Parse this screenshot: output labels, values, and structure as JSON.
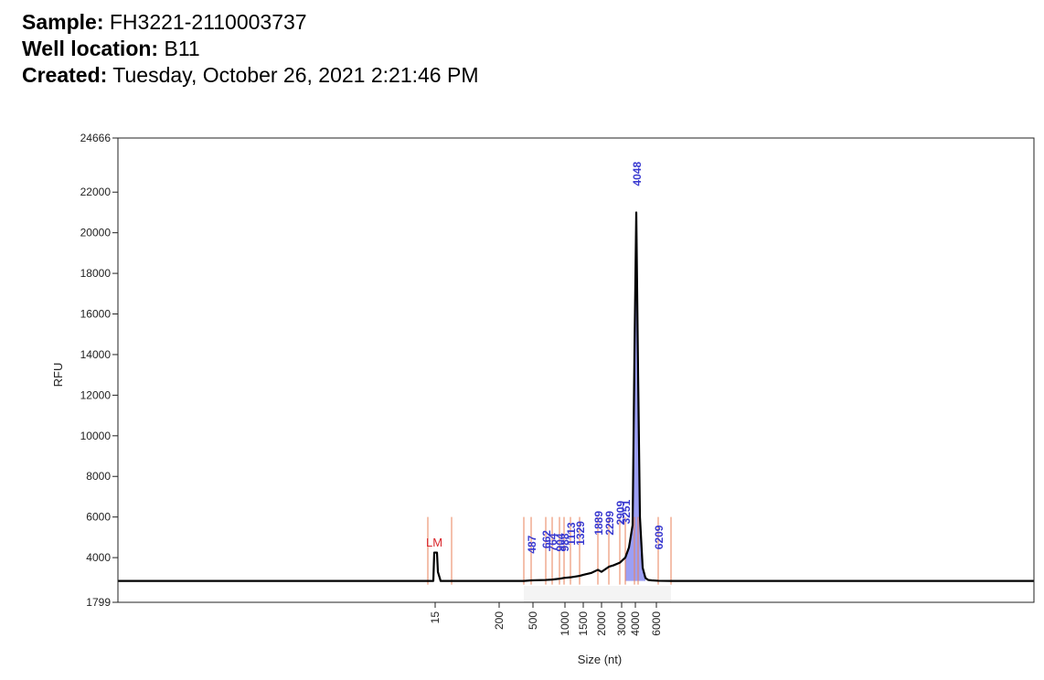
{
  "header": {
    "sample_label": "Sample:",
    "sample_value": "FH3221-2110003737",
    "well_label": "Well location:",
    "well_value": "B11",
    "created_label": "Created:",
    "created_value": "Tuesday, October 26, 2021 2:21:46 PM"
  },
  "chart_data": {
    "type": "line",
    "title": "",
    "xlabel": "Size (nt)",
    "ylabel": "RFU",
    "ylim": [
      1799,
      24666
    ],
    "y_ticks": [
      {
        "value": 1799,
        "label": "1799"
      },
      {
        "value": 4000,
        "label": "4000"
      },
      {
        "value": 6000,
        "label": "6000"
      },
      {
        "value": 8000,
        "label": "8000"
      },
      {
        "value": 10000,
        "label": "10000"
      },
      {
        "value": 12000,
        "label": "12000"
      },
      {
        "value": 14000,
        "label": "14000"
      },
      {
        "value": 16000,
        "label": "16000"
      },
      {
        "value": 18000,
        "label": "18000"
      },
      {
        "value": 20000,
        "label": "20000"
      },
      {
        "value": 22000,
        "label": "22000"
      },
      {
        "value": 24666,
        "label": "24666"
      }
    ],
    "x_ticks": [
      "15",
      "200",
      "500",
      "1000",
      "1500",
      "2000",
      "3000",
      "4000",
      "6000"
    ],
    "grid": false,
    "baseline_rfu": 2850,
    "marker": {
      "label": "LM",
      "size": 15,
      "peak_rfu": 4250,
      "color": "#d9262b"
    },
    "peak_labels": [
      "487",
      "662",
      "764",
      "904",
      "988",
      "1113",
      "1329",
      "1889",
      "2299",
      "2909",
      "3251",
      "4048",
      "6209"
    ],
    "main_peak": {
      "size": 4048,
      "rfu": 21000
    },
    "series": [
      {
        "x": [
          15,
          15,
          15,
          15,
          15,
          15,
          200,
          400,
          487,
          662,
          764,
          904,
          988,
          1113,
          1329,
          1500,
          1700,
          1889,
          2000,
          2299,
          2500,
          2909,
          3251,
          3500,
          3800,
          3950,
          4048,
          4150,
          4300,
          4500,
          4700,
          5000,
          5500,
          6209,
          7000
        ],
        "y": [
          2850,
          2850,
          3100,
          4250,
          3600,
          2900,
          2850,
          2850,
          2880,
          2900,
          2920,
          2960,
          3000,
          3030,
          3100,
          3150,
          3250,
          3400,
          3300,
          3550,
          3620,
          3750,
          4000,
          4500,
          5600,
          14000,
          21000,
          13000,
          6000,
          3500,
          3000,
          2900,
          2880,
          2860,
          2850
        ]
      }
    ]
  }
}
